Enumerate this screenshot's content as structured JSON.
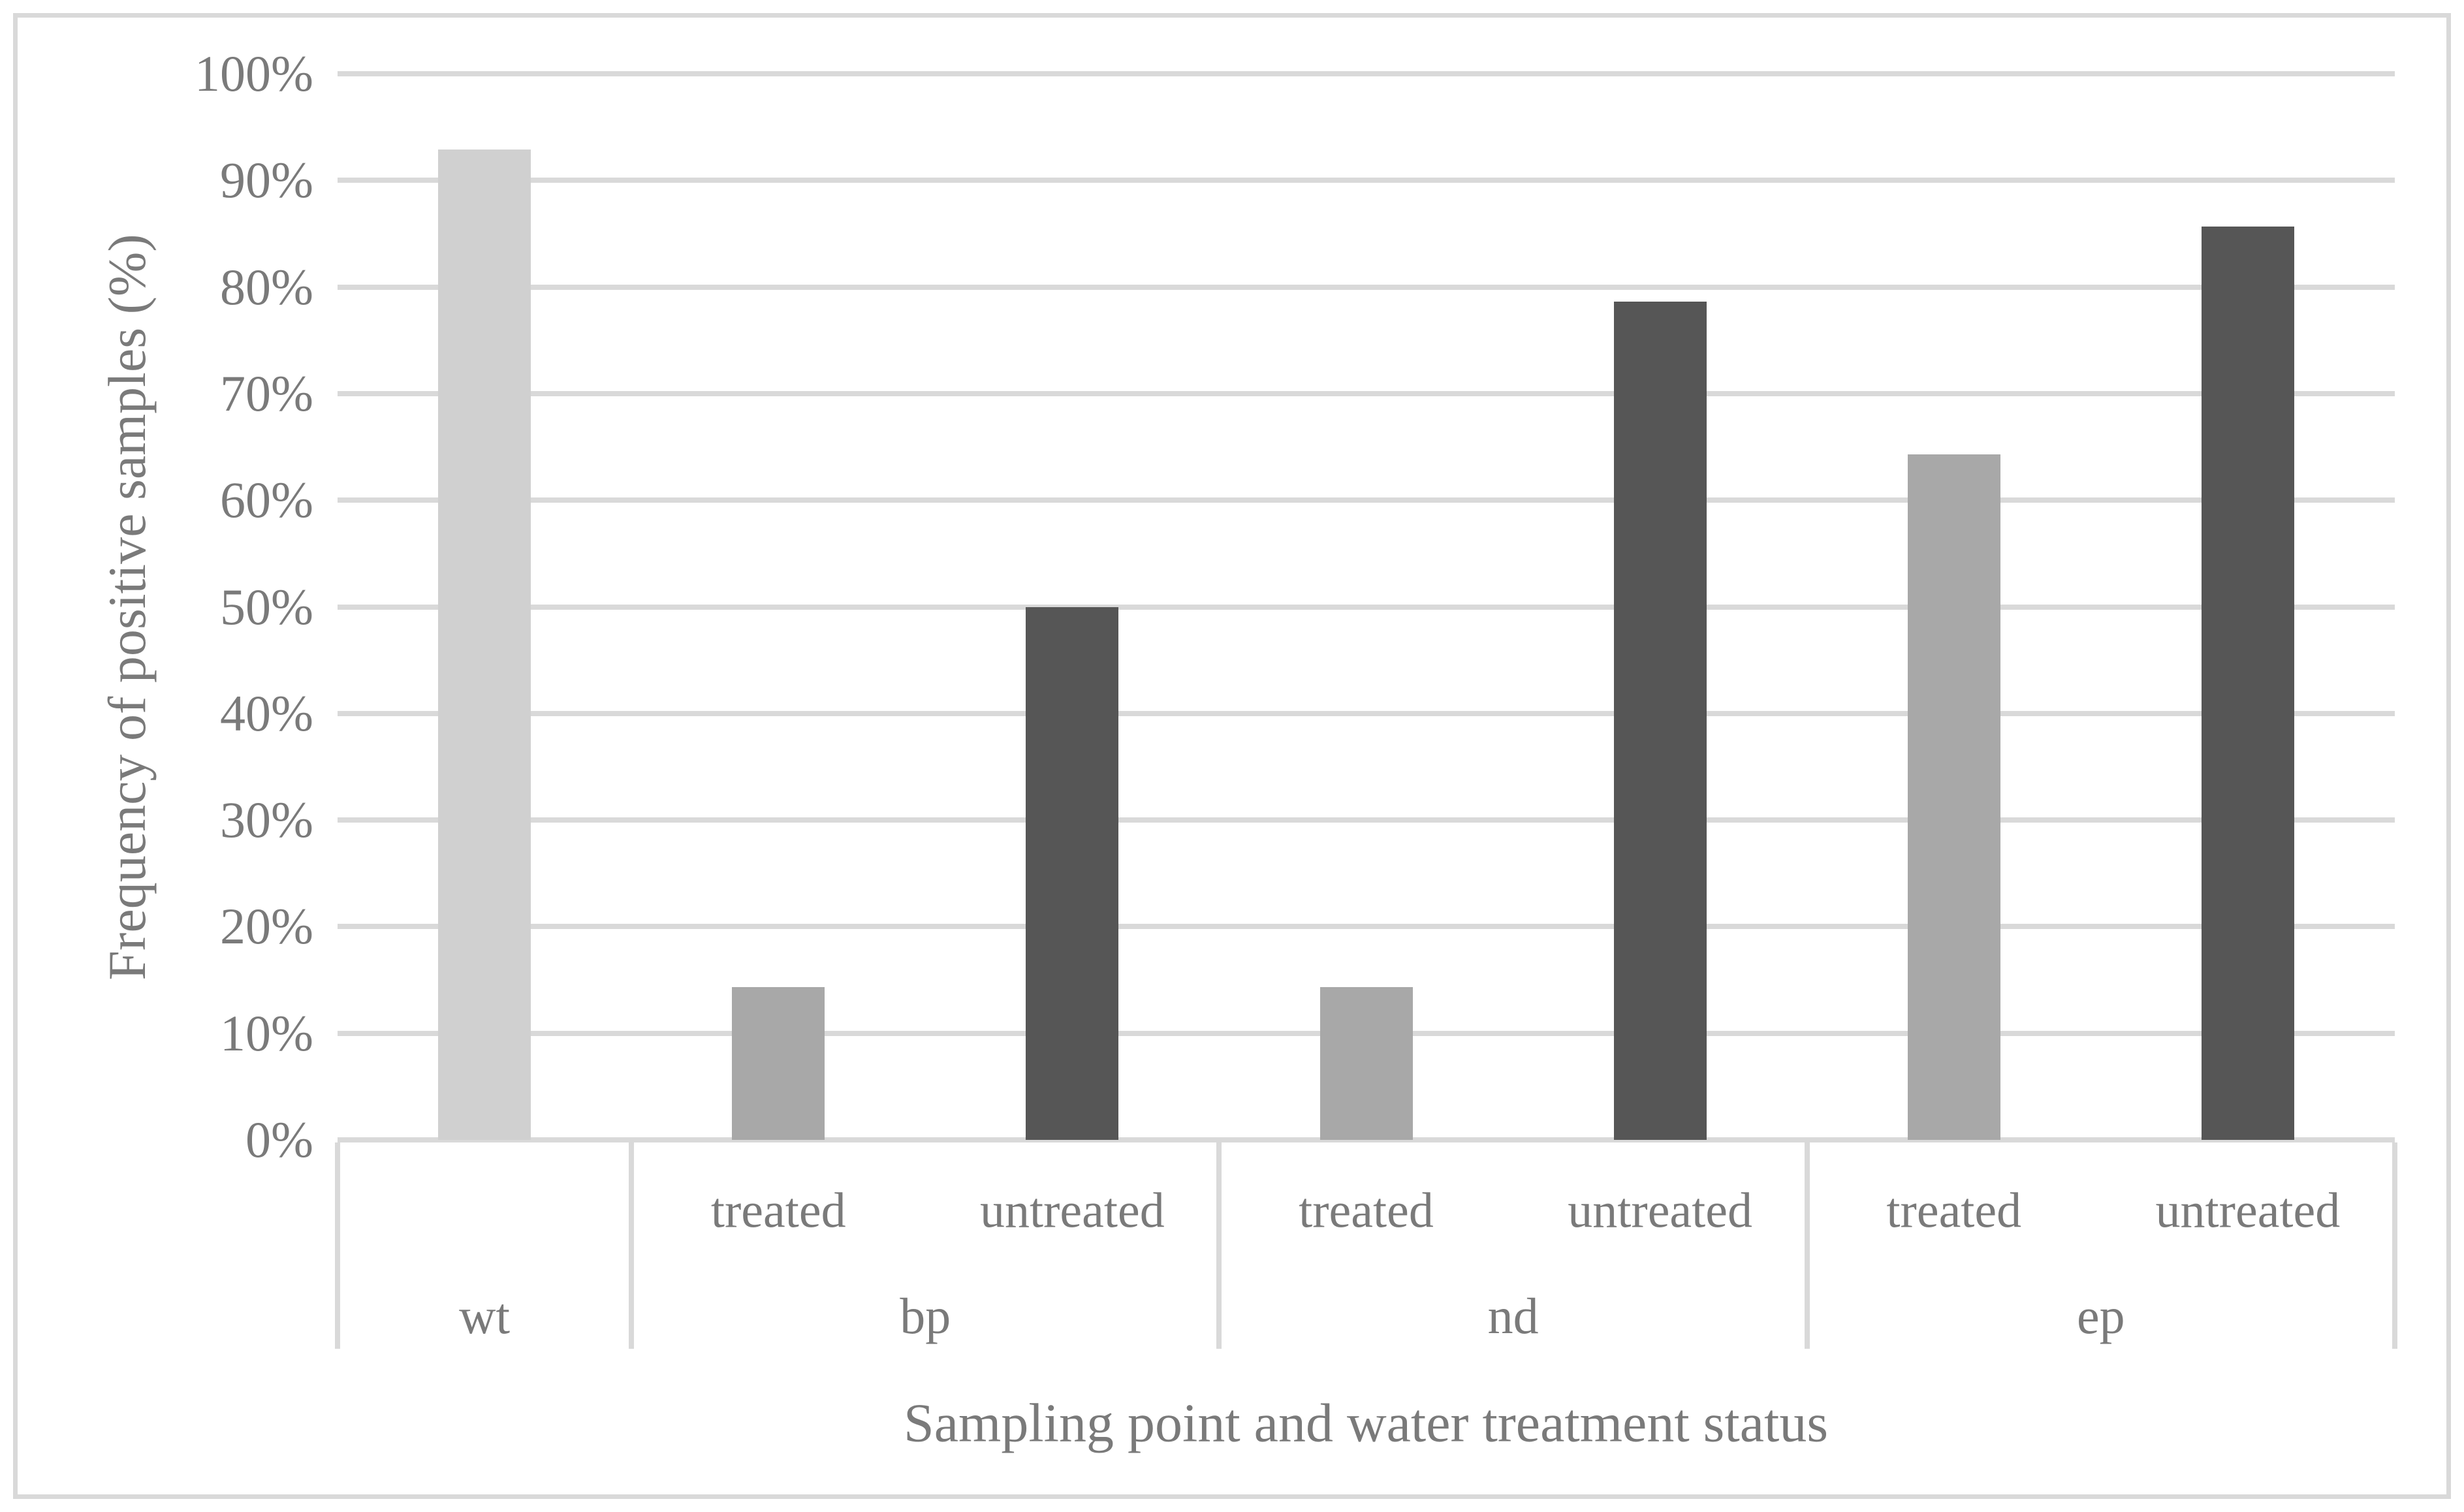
{
  "chart_data": {
    "type": "bar",
    "title": "",
    "ylabel": "Frequency of positive samples (%)",
    "xlabel": "Sampling point and water treatment status",
    "ylim": [
      0,
      100
    ],
    "ytick_step": 10,
    "yticks": [
      "0%",
      "10%",
      "20%",
      "30%",
      "40%",
      "50%",
      "60%",
      "70%",
      "80%",
      "90%",
      "100%"
    ],
    "grid": "horizontal",
    "legend": "none",
    "groups": [
      {
        "label": "wt",
        "bars": [
          {
            "treatment": "",
            "value": 92.9
          }
        ]
      },
      {
        "label": "bp",
        "bars": [
          {
            "treatment": "treated",
            "value": 14.3
          },
          {
            "treatment": "untreated",
            "value": 50.0
          }
        ]
      },
      {
        "label": "nd",
        "bars": [
          {
            "treatment": "treated",
            "value": 14.3
          },
          {
            "treatment": "untreated",
            "value": 78.6
          }
        ]
      },
      {
        "label": "ep",
        "bars": [
          {
            "treatment": "treated",
            "value": 64.3
          },
          {
            "treatment": "untreated",
            "value": 85.7
          }
        ]
      }
    ],
    "colors": {
      "single": "#d0d0d0",
      "treated": "#a8a8a8",
      "untreated": "#565656",
      "gridline": "#d9d9d9",
      "axis_line": "#d9d9d9",
      "text": "#7a7a7a",
      "background": "#ffffff",
      "figure_border": "#d9d9d9"
    }
  }
}
